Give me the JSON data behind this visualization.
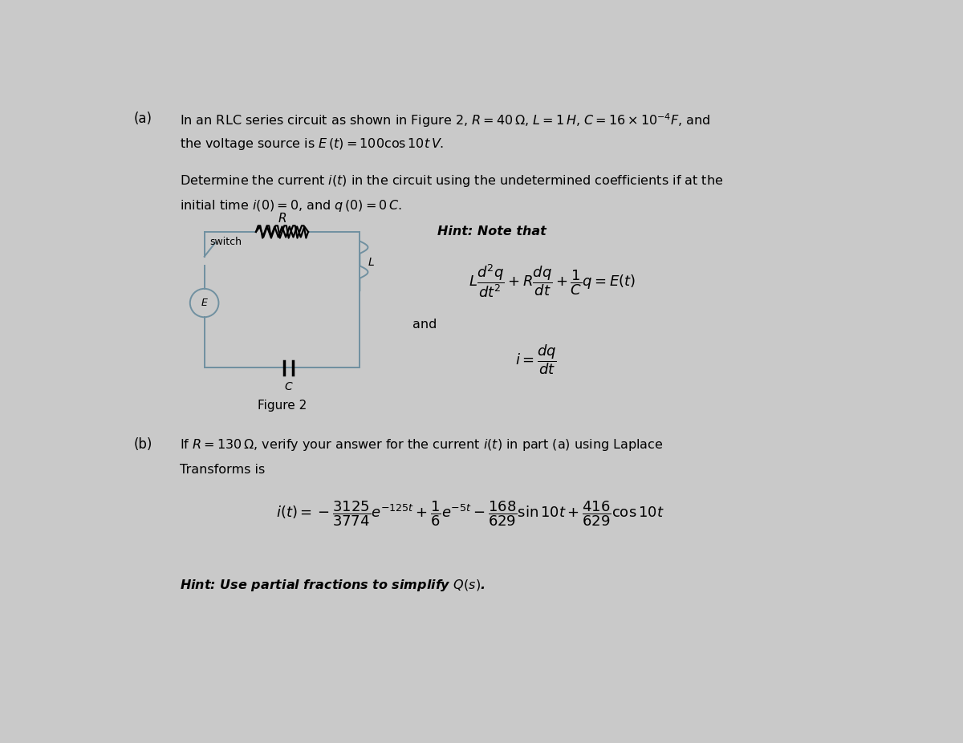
{
  "background_color": "#c9c9c9",
  "text_color": "#000000",
  "fig_width": 12.0,
  "fig_height": 9.26,
  "part_a_label": "(a)",
  "part_a_line1": "In an RLC series circuit as shown in Figure 2, $R = 40\\,\\Omega$, $L = 1\\,H$, $C = 16 \\times 10^{-4}F$, and",
  "part_a_line2": "the voltage source is $E\\,(t) = 100 \\cos 10t\\,V$.",
  "part_a_line3": "Determine the current $i(t)$ in the circuit using the undetermined coefficients if at the",
  "part_a_line4": "initial time $i(0) = 0$, and $q\\,(0) = 0\\,C$.",
  "hint_label": "Hint: Note that",
  "equation1": "$L\\dfrac{d^2q}{dt^2} + R\\dfrac{dq}{dt} + \\dfrac{1}{C}q = E(t)$",
  "and_label": "and",
  "equation2": "$i = \\dfrac{dq}{dt}$",
  "figure_label": "Figure 2",
  "switch_label": "switch",
  "R_label": "R",
  "L_label": "L",
  "C_label": "C",
  "E_label": "E",
  "part_b_label": "(b)",
  "part_b_line1": "If $R = 130\\,\\Omega$, verify your answer for the current $i(t)$ in part (a) using Laplace",
  "part_b_line2": "Transforms is",
  "part_b_equation": "$i(t) = -\\dfrac{3125}{3774}e^{-125t} + \\dfrac{1}{6}e^{-5t} - \\dfrac{168}{629}\\sin 10t + \\dfrac{416}{629}\\cos 10t$",
  "hint_b": "Hint: Use partial fractions to simplify $Q(s)$.",
  "circuit_color": "#7090a0",
  "circuit_lw": 1.4
}
